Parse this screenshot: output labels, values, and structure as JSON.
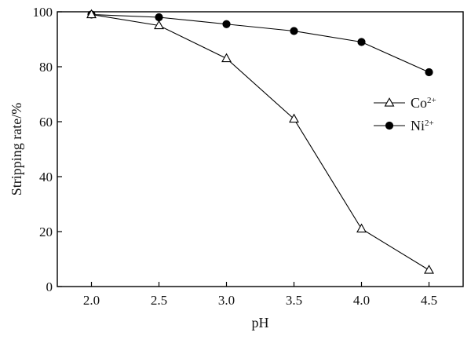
{
  "chart_data": {
    "type": "line",
    "title": "",
    "xlabel": "pH",
    "ylabel": "Stripping rate/%",
    "xlim": [
      2.0,
      4.5
    ],
    "ylim": [
      0,
      100
    ],
    "x_ticks": [
      "2.0",
      "2.5",
      "3.0",
      "3.5",
      "4.0",
      "4.5"
    ],
    "y_ticks": [
      "0",
      "20",
      "40",
      "60",
      "80",
      "100"
    ],
    "grid": false,
    "legend_position": "right",
    "x": [
      2.0,
      2.5,
      3.0,
      3.5,
      4.0,
      4.5
    ],
    "series": [
      {
        "key": "co",
        "name": "Co",
        "superscript": "2+",
        "marker": "open-triangle",
        "values": [
          99,
          95,
          83,
          61,
          21,
          6
        ]
      },
      {
        "key": "ni",
        "name": "Ni",
        "superscript": "2+",
        "marker": "filled-circle",
        "values": [
          99,
          98,
          95.5,
          93,
          89,
          78
        ]
      }
    ],
    "colors": {
      "line": "#000000",
      "marker_fill": "#000000",
      "open_marker_fill": "#ffffff"
    }
  }
}
